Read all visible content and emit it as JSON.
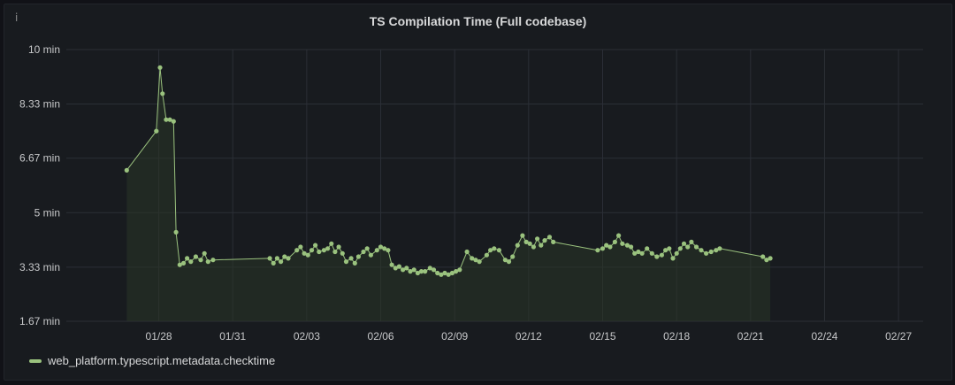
{
  "panel": {
    "title": "TS Compilation Time (Full codebase)",
    "info_icon": "i"
  },
  "colors": {
    "series": "#9ac27e",
    "fill": "#2a3427",
    "grid": "#2b2f36"
  },
  "chart_data": {
    "type": "line",
    "title": "TS Compilation Time (Full codebase)",
    "xlabel": "",
    "ylabel": "",
    "x_unit": "days since 01/28",
    "xlim": [
      -3.75,
      31.0
    ],
    "x_ticks": [
      {
        "x": 0,
        "label": "01/28"
      },
      {
        "x": 3,
        "label": "01/31"
      },
      {
        "x": 6,
        "label": "02/03"
      },
      {
        "x": 9,
        "label": "02/06"
      },
      {
        "x": 12,
        "label": "02/09"
      },
      {
        "x": 15,
        "label": "02/12"
      },
      {
        "x": 18,
        "label": "02/15"
      },
      {
        "x": 21,
        "label": "02/18"
      },
      {
        "x": 24,
        "label": "02/21"
      },
      {
        "x": 27,
        "label": "02/24"
      },
      {
        "x": 30,
        "label": "02/27"
      }
    ],
    "ylim": [
      1.67,
      10
    ],
    "y_ticks": [
      {
        "y": 10,
        "label": "10 min"
      },
      {
        "y": 8.33,
        "label": "8.33 min"
      },
      {
        "y": 6.67,
        "label": "6.67 min"
      },
      {
        "y": 5,
        "label": "5 min"
      },
      {
        "y": 3.33,
        "label": "3.33 min"
      },
      {
        "y": 1.67,
        "label": "1.67 min"
      }
    ],
    "grid": true,
    "legend_position": "bottom-left",
    "series": [
      {
        "name": "web_platform.typescript.metadata.checktime",
        "points": [
          [
            -1.3,
            6.3
          ],
          [
            -0.1,
            7.5
          ],
          [
            0.05,
            9.45
          ],
          [
            0.15,
            8.65
          ],
          [
            0.3,
            7.85
          ],
          [
            0.45,
            7.85
          ],
          [
            0.6,
            7.8
          ],
          [
            0.7,
            4.4
          ],
          [
            0.85,
            3.4
          ],
          [
            1.0,
            3.45
          ],
          [
            1.15,
            3.6
          ],
          [
            1.3,
            3.5
          ],
          [
            1.5,
            3.65
          ],
          [
            1.7,
            3.55
          ],
          [
            1.85,
            3.75
          ],
          [
            2.0,
            3.5
          ],
          [
            2.2,
            3.55
          ],
          [
            4.5,
            3.6
          ],
          [
            4.65,
            3.45
          ],
          [
            4.8,
            3.6
          ],
          [
            4.95,
            3.5
          ],
          [
            5.1,
            3.65
          ],
          [
            5.25,
            3.6
          ],
          [
            5.6,
            3.85
          ],
          [
            5.75,
            3.95
          ],
          [
            5.9,
            3.75
          ],
          [
            6.05,
            3.7
          ],
          [
            6.2,
            3.85
          ],
          [
            6.35,
            4.0
          ],
          [
            6.5,
            3.8
          ],
          [
            6.7,
            3.85
          ],
          [
            6.85,
            3.9
          ],
          [
            7.0,
            4.05
          ],
          [
            7.15,
            3.8
          ],
          [
            7.3,
            3.95
          ],
          [
            7.45,
            3.75
          ],
          [
            7.6,
            3.5
          ],
          [
            7.8,
            3.6
          ],
          [
            7.95,
            3.45
          ],
          [
            8.1,
            3.65
          ],
          [
            8.3,
            3.8
          ],
          [
            8.45,
            3.9
          ],
          [
            8.6,
            3.7
          ],
          [
            8.85,
            3.85
          ],
          [
            9.0,
            3.95
          ],
          [
            9.15,
            3.9
          ],
          [
            9.3,
            3.85
          ],
          [
            9.45,
            3.4
          ],
          [
            9.6,
            3.3
          ],
          [
            9.75,
            3.35
          ],
          [
            9.9,
            3.25
          ],
          [
            10.05,
            3.3
          ],
          [
            10.2,
            3.2
          ],
          [
            10.35,
            3.25
          ],
          [
            10.5,
            3.15
          ],
          [
            10.65,
            3.2
          ],
          [
            10.8,
            3.2
          ],
          [
            11.0,
            3.3
          ],
          [
            11.15,
            3.25
          ],
          [
            11.3,
            3.15
          ],
          [
            11.45,
            3.1
          ],
          [
            11.6,
            3.15
          ],
          [
            11.75,
            3.1
          ],
          [
            11.9,
            3.15
          ],
          [
            12.05,
            3.2
          ],
          [
            12.2,
            3.25
          ],
          [
            12.5,
            3.8
          ],
          [
            12.7,
            3.6
          ],
          [
            12.85,
            3.55
          ],
          [
            13.0,
            3.5
          ],
          [
            13.3,
            3.7
          ],
          [
            13.45,
            3.85
          ],
          [
            13.6,
            3.9
          ],
          [
            13.8,
            3.85
          ],
          [
            14.05,
            3.55
          ],
          [
            14.2,
            3.5
          ],
          [
            14.35,
            3.65
          ],
          [
            14.55,
            4.0
          ],
          [
            14.75,
            4.3
          ],
          [
            14.9,
            4.1
          ],
          [
            15.05,
            4.05
          ],
          [
            15.2,
            3.95
          ],
          [
            15.35,
            4.2
          ],
          [
            15.5,
            4.0
          ],
          [
            15.65,
            4.15
          ],
          [
            15.85,
            4.25
          ],
          [
            16.0,
            4.1
          ],
          [
            17.8,
            3.85
          ],
          [
            18.0,
            3.9
          ],
          [
            18.15,
            4.0
          ],
          [
            18.3,
            3.95
          ],
          [
            18.5,
            4.1
          ],
          [
            18.65,
            4.3
          ],
          [
            18.8,
            4.05
          ],
          [
            19.0,
            4.0
          ],
          [
            19.15,
            3.95
          ],
          [
            19.3,
            3.75
          ],
          [
            19.45,
            3.8
          ],
          [
            19.6,
            3.75
          ],
          [
            19.8,
            3.9
          ],
          [
            20.0,
            3.75
          ],
          [
            20.2,
            3.65
          ],
          [
            20.4,
            3.7
          ],
          [
            20.55,
            3.85
          ],
          [
            20.7,
            3.9
          ],
          [
            20.85,
            3.6
          ],
          [
            21.0,
            3.75
          ],
          [
            21.15,
            3.9
          ],
          [
            21.3,
            4.05
          ],
          [
            21.45,
            3.95
          ],
          [
            21.6,
            4.1
          ],
          [
            21.8,
            3.95
          ],
          [
            22.0,
            3.85
          ],
          [
            22.2,
            3.75
          ],
          [
            22.4,
            3.8
          ],
          [
            22.6,
            3.85
          ],
          [
            22.75,
            3.9
          ],
          [
            24.5,
            3.65
          ],
          [
            24.65,
            3.55
          ],
          [
            24.8,
            3.6
          ]
        ]
      }
    ]
  }
}
